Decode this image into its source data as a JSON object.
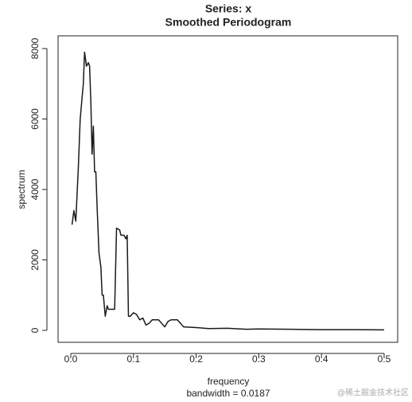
{
  "chart_data": {
    "type": "line",
    "title": "Series: x",
    "subtitle": "Smoothed Periodogram",
    "x_label": "frequency",
    "sub_label": "bandwidth = 0.0187",
    "y_label": "spectrum",
    "watermark": "@稀土掘金技术社区",
    "color": "#1a1a1a",
    "x": [
      0.002,
      0.005,
      0.008,
      0.012,
      0.015,
      0.018,
      0.02,
      0.022,
      0.025,
      0.028,
      0.03,
      0.032,
      0.034,
      0.036,
      0.038,
      0.04,
      0.042,
      0.045,
      0.048,
      0.05,
      0.052,
      0.055,
      0.058,
      0.06,
      0.07,
      0.073,
      0.078,
      0.08,
      0.085,
      0.088,
      0.09,
      0.092,
      0.095,
      0.1,
      0.105,
      0.11,
      0.115,
      0.12,
      0.125,
      0.13,
      0.14,
      0.145,
      0.15,
      0.155,
      0.16,
      0.17,
      0.175,
      0.18,
      0.2,
      0.22,
      0.25,
      0.28,
      0.3,
      0.35,
      0.4,
      0.45,
      0.5
    ],
    "values": [
      3000,
      3400,
      3100,
      4600,
      6000,
      6600,
      7000,
      7900,
      7500,
      7600,
      7500,
      6500,
      5000,
      5800,
      4500,
      4500,
      3500,
      2200,
      1800,
      1000,
      1000,
      400,
      700,
      600,
      600,
      2900,
      2850,
      2700,
      2700,
      2600,
      2700,
      400,
      400,
      500,
      450,
      300,
      350,
      150,
      200,
      300,
      300,
      200,
      100,
      250,
      300,
      300,
      200,
      100,
      80,
      50,
      60,
      30,
      40,
      30,
      20,
      20,
      15
    ],
    "xlim": [
      -0.0203,
      0.5216
    ],
    "ylim": [
      -339,
      8362
    ],
    "xticks": [
      {
        "value": 0,
        "label": "0.0"
      },
      0.1,
      0.2,
      0.3,
      0.4,
      0.5
    ],
    "yticks": [
      0,
      2000,
      4000,
      6000,
      8000
    ]
  }
}
